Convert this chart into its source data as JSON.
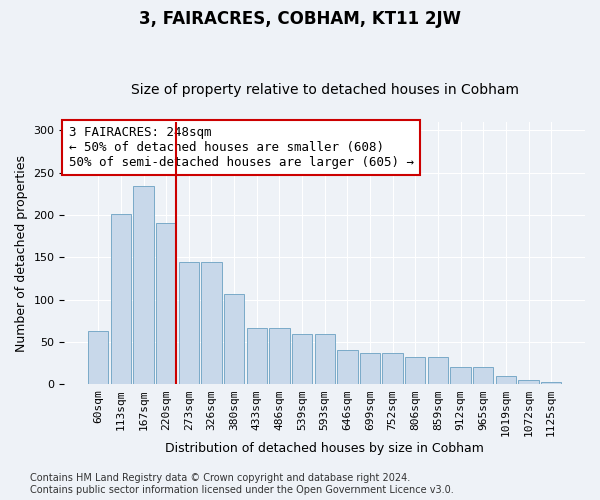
{
  "title": "3, FAIRACRES, COBHAM, KT11 2JW",
  "subtitle": "Size of property relative to detached houses in Cobham",
  "xlabel": "Distribution of detached houses by size in Cobham",
  "ylabel": "Number of detached properties",
  "bar_labels": [
    "60sqm",
    "113sqm",
    "167sqm",
    "220sqm",
    "273sqm",
    "326sqm",
    "380sqm",
    "433sqm",
    "486sqm",
    "539sqm",
    "593sqm",
    "646sqm",
    "699sqm",
    "752sqm",
    "806sqm",
    "859sqm",
    "912sqm",
    "965sqm",
    "1019sqm",
    "1072sqm",
    "1125sqm"
  ],
  "bar_values": [
    63,
    201,
    234,
    190,
    144,
    144,
    107,
    67,
    67,
    60,
    60,
    40,
    37,
    37,
    32,
    32,
    20,
    20,
    10,
    5,
    3
  ],
  "bar_color": "#c8d8ea",
  "bar_edge_color": "#7aaac8",
  "vline_color": "#cc0000",
  "annotation_text": "3 FAIRACRES: 248sqm\n← 50% of detached houses are smaller (608)\n50% of semi-detached houses are larger (605) →",
  "annotation_box_color": "white",
  "annotation_box_edge_color": "#cc0000",
  "ylim": [
    0,
    310
  ],
  "yticks": [
    0,
    50,
    100,
    150,
    200,
    250,
    300
  ],
  "footer": "Contains HM Land Registry data © Crown copyright and database right 2024.\nContains public sector information licensed under the Open Government Licence v3.0.",
  "background_color": "#eef2f7",
  "grid_color": "#ffffff",
  "title_fontsize": 12,
  "subtitle_fontsize": 10,
  "label_fontsize": 9,
  "tick_fontsize": 8,
  "footer_fontsize": 7,
  "annotation_fontsize": 9
}
